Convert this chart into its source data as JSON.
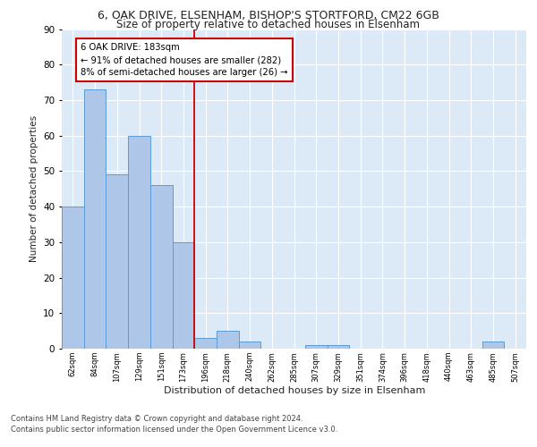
{
  "title1": "6, OAK DRIVE, ELSENHAM, BISHOP'S STORTFORD, CM22 6GB",
  "title2": "Size of property relative to detached houses in Elsenham",
  "xlabel": "Distribution of detached houses by size in Elsenham",
  "ylabel": "Number of detached properties",
  "categories": [
    "62sqm",
    "84sqm",
    "107sqm",
    "129sqm",
    "151sqm",
    "173sqm",
    "196sqm",
    "218sqm",
    "240sqm",
    "262sqm",
    "285sqm",
    "307sqm",
    "329sqm",
    "351sqm",
    "374sqm",
    "396sqm",
    "418sqm",
    "440sqm",
    "463sqm",
    "485sqm",
    "507sqm"
  ],
  "values": [
    40,
    73,
    49,
    60,
    46,
    30,
    3,
    5,
    2,
    0,
    0,
    1,
    1,
    0,
    0,
    0,
    0,
    0,
    0,
    2,
    0
  ],
  "bar_color": "#aec6e8",
  "bar_edge_color": "#5b9bd5",
  "background_color": "#dce9f7",
  "grid_color": "#ffffff",
  "vline_x": 5.5,
  "vline_color": "#cc0000",
  "annotation_line1": "6 OAK DRIVE: 183sqm",
  "annotation_line2": "← 91% of detached houses are smaller (282)",
  "annotation_line3": "8% of semi-detached houses are larger (26) →",
  "annotation_box_color": "#ffffff",
  "annotation_box_edge_color": "#cc0000",
  "ylim": [
    0,
    90
  ],
  "yticks": [
    0,
    10,
    20,
    30,
    40,
    50,
    60,
    70,
    80,
    90
  ],
  "footnote1": "Contains HM Land Registry data © Crown copyright and database right 2024.",
  "footnote2": "Contains public sector information licensed under the Open Government Licence v3.0."
}
